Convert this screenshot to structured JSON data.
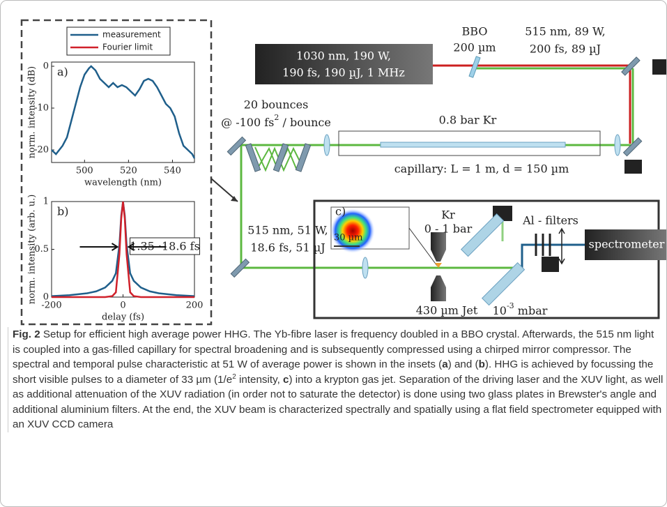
{
  "chart_data": [
    {
      "type": "line",
      "annotation": "a)",
      "xlabel": "wavelength (nm)",
      "ylabel": "norm. intensity (dB)",
      "xlim": [
        485,
        550
      ],
      "ylim": [
        -23,
        1
      ],
      "xticks": [
        500,
        520,
        540
      ],
      "yticks": [
        0,
        -10,
        -20
      ],
      "x": [
        485,
        487,
        490,
        492,
        494,
        496,
        498,
        500,
        502,
        503,
        505,
        507,
        509,
        511,
        513,
        515,
        517,
        519,
        521,
        523,
        525,
        527,
        529,
        531,
        533,
        535,
        537,
        539,
        541,
        543,
        545,
        547,
        549,
        550
      ],
      "series": [
        {
          "color": "#1f5f8b",
          "values": [
            -20,
            -21,
            -19,
            -17,
            -13,
            -9,
            -5,
            -2,
            -0.5,
            0,
            -1,
            -3,
            -4,
            -5,
            -4,
            -5,
            -4.5,
            -5,
            -6,
            -7,
            -5.5,
            -3.5,
            -3,
            -3.5,
            -5,
            -7,
            -9,
            -10,
            -12,
            -16,
            -19,
            -20,
            -21,
            -22
          ]
        }
      ]
    },
    {
      "type": "line",
      "annotation": "b)",
      "label": "1.35 ·18.6 fs",
      "xlabel": "delay (fs)",
      "ylabel": "norm. intensity (arb. u.)",
      "xlim": [
        -200,
        200
      ],
      "ylim": [
        0,
        1
      ],
      "xticks": [
        -200,
        0,
        200
      ],
      "yticks": [
        0,
        0.5,
        1
      ],
      "x": [
        -200,
        -150,
        -100,
        -75,
        -50,
        -30,
        -20,
        -10,
        -5,
        0,
        5,
        10,
        20,
        30,
        50,
        75,
        100,
        150,
        200
      ],
      "series": [
        {
          "name": "measurement",
          "color": "#1f5f8b",
          "values": [
            0.01,
            0.02,
            0.04,
            0.06,
            0.1,
            0.17,
            0.25,
            0.55,
            0.85,
            1,
            0.85,
            0.55,
            0.25,
            0.17,
            0.1,
            0.06,
            0.04,
            0.02,
            0.01
          ]
        },
        {
          "name": "Fourier limit",
          "color": "#d0202a",
          "values": [
            0,
            0,
            0,
            0,
            0,
            0.01,
            0.05,
            0.45,
            0.82,
            1,
            0.82,
            0.45,
            0.05,
            0.01,
            0,
            0,
            0,
            0,
            0
          ]
        }
      ]
    }
  ],
  "diagram": {
    "laser": [
      "1030 nm, 190 W,",
      "190 fs, 190 µJ, 1 MHz"
    ],
    "bbo": [
      "BBO",
      "200 µm"
    ],
    "doubled": [
      "515 nm, 89 W,",
      "200 fs, 89 µJ"
    ],
    "compressor": [
      "20 bounces",
      "@ -100 fs",
      "2",
      "/ bounce"
    ],
    "gas": "0.8 bar Kr",
    "capillary": "capillary: L = 1 m, d = 150 µm",
    "compressed": [
      "515 nm, 51 W,",
      "18.6 fs, 51 µJ"
    ],
    "inset": "c)",
    "scale": "30 µm",
    "jet": [
      "Kr",
      "0 - 1 bar",
      "430 µm Jet"
    ],
    "pressure": [
      "10",
      "-3",
      "mbar"
    ],
    "filters": "Al - filters",
    "spectrometer": "spectrometer"
  },
  "caption": {
    "label": "Fig. 2",
    "segments": [
      "Setup for efficient high average power HHG. The Yb-fibre laser is frequency doubled in a BBO crystal. Afterwards, the 515 nm light is coupled into a gas-filled capillary for spectral broadening and is subsequently compressed using a chirped mirror compressor. The spectral and temporal pulse characteristic at 51 W of average power is shown in the insets (",
      "a",
      ") and (",
      "b",
      "). HHG is achieved by focussing the short visible pulses to a diameter of 33 µm (1/e",
      "2",
      "intensity,",
      "c",
      ") into a krypton gas jet. Separation of the driving laser and the XUV light, as well as additional attenuation of the XUV radiation (in order not to saturate the detector) is done using two glass plates in Brewster's angle and additional aluminium filters. At the end, the XUV beam is characterized spectrally and spatially using a flat field spectrometer equipped with an XUV CCD camera"
    ]
  }
}
